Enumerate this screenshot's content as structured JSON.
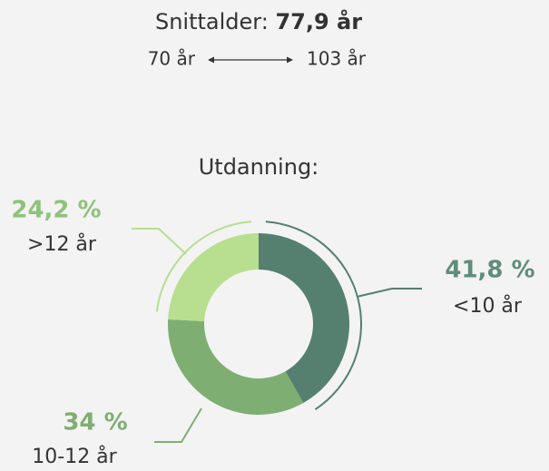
{
  "header": {
    "label": "Snittalder:",
    "value": "77,9 år",
    "min": "70 år",
    "max": "103 år"
  },
  "chart_data": {
    "type": "pie",
    "title": "Utdanning:",
    "categories": [
      "<10 år",
      "10-12 år",
      ">12 år"
    ],
    "values": [
      41.8,
      34,
      24.2
    ],
    "value_labels": [
      "41,8 %",
      "34 %",
      "24,2 %"
    ],
    "colors": [
      "#557f6f",
      "#7fae72",
      "#b7df8f"
    ],
    "label_colors": [
      "#5f8d79",
      "#7fae72",
      "#8fc27b"
    ]
  }
}
